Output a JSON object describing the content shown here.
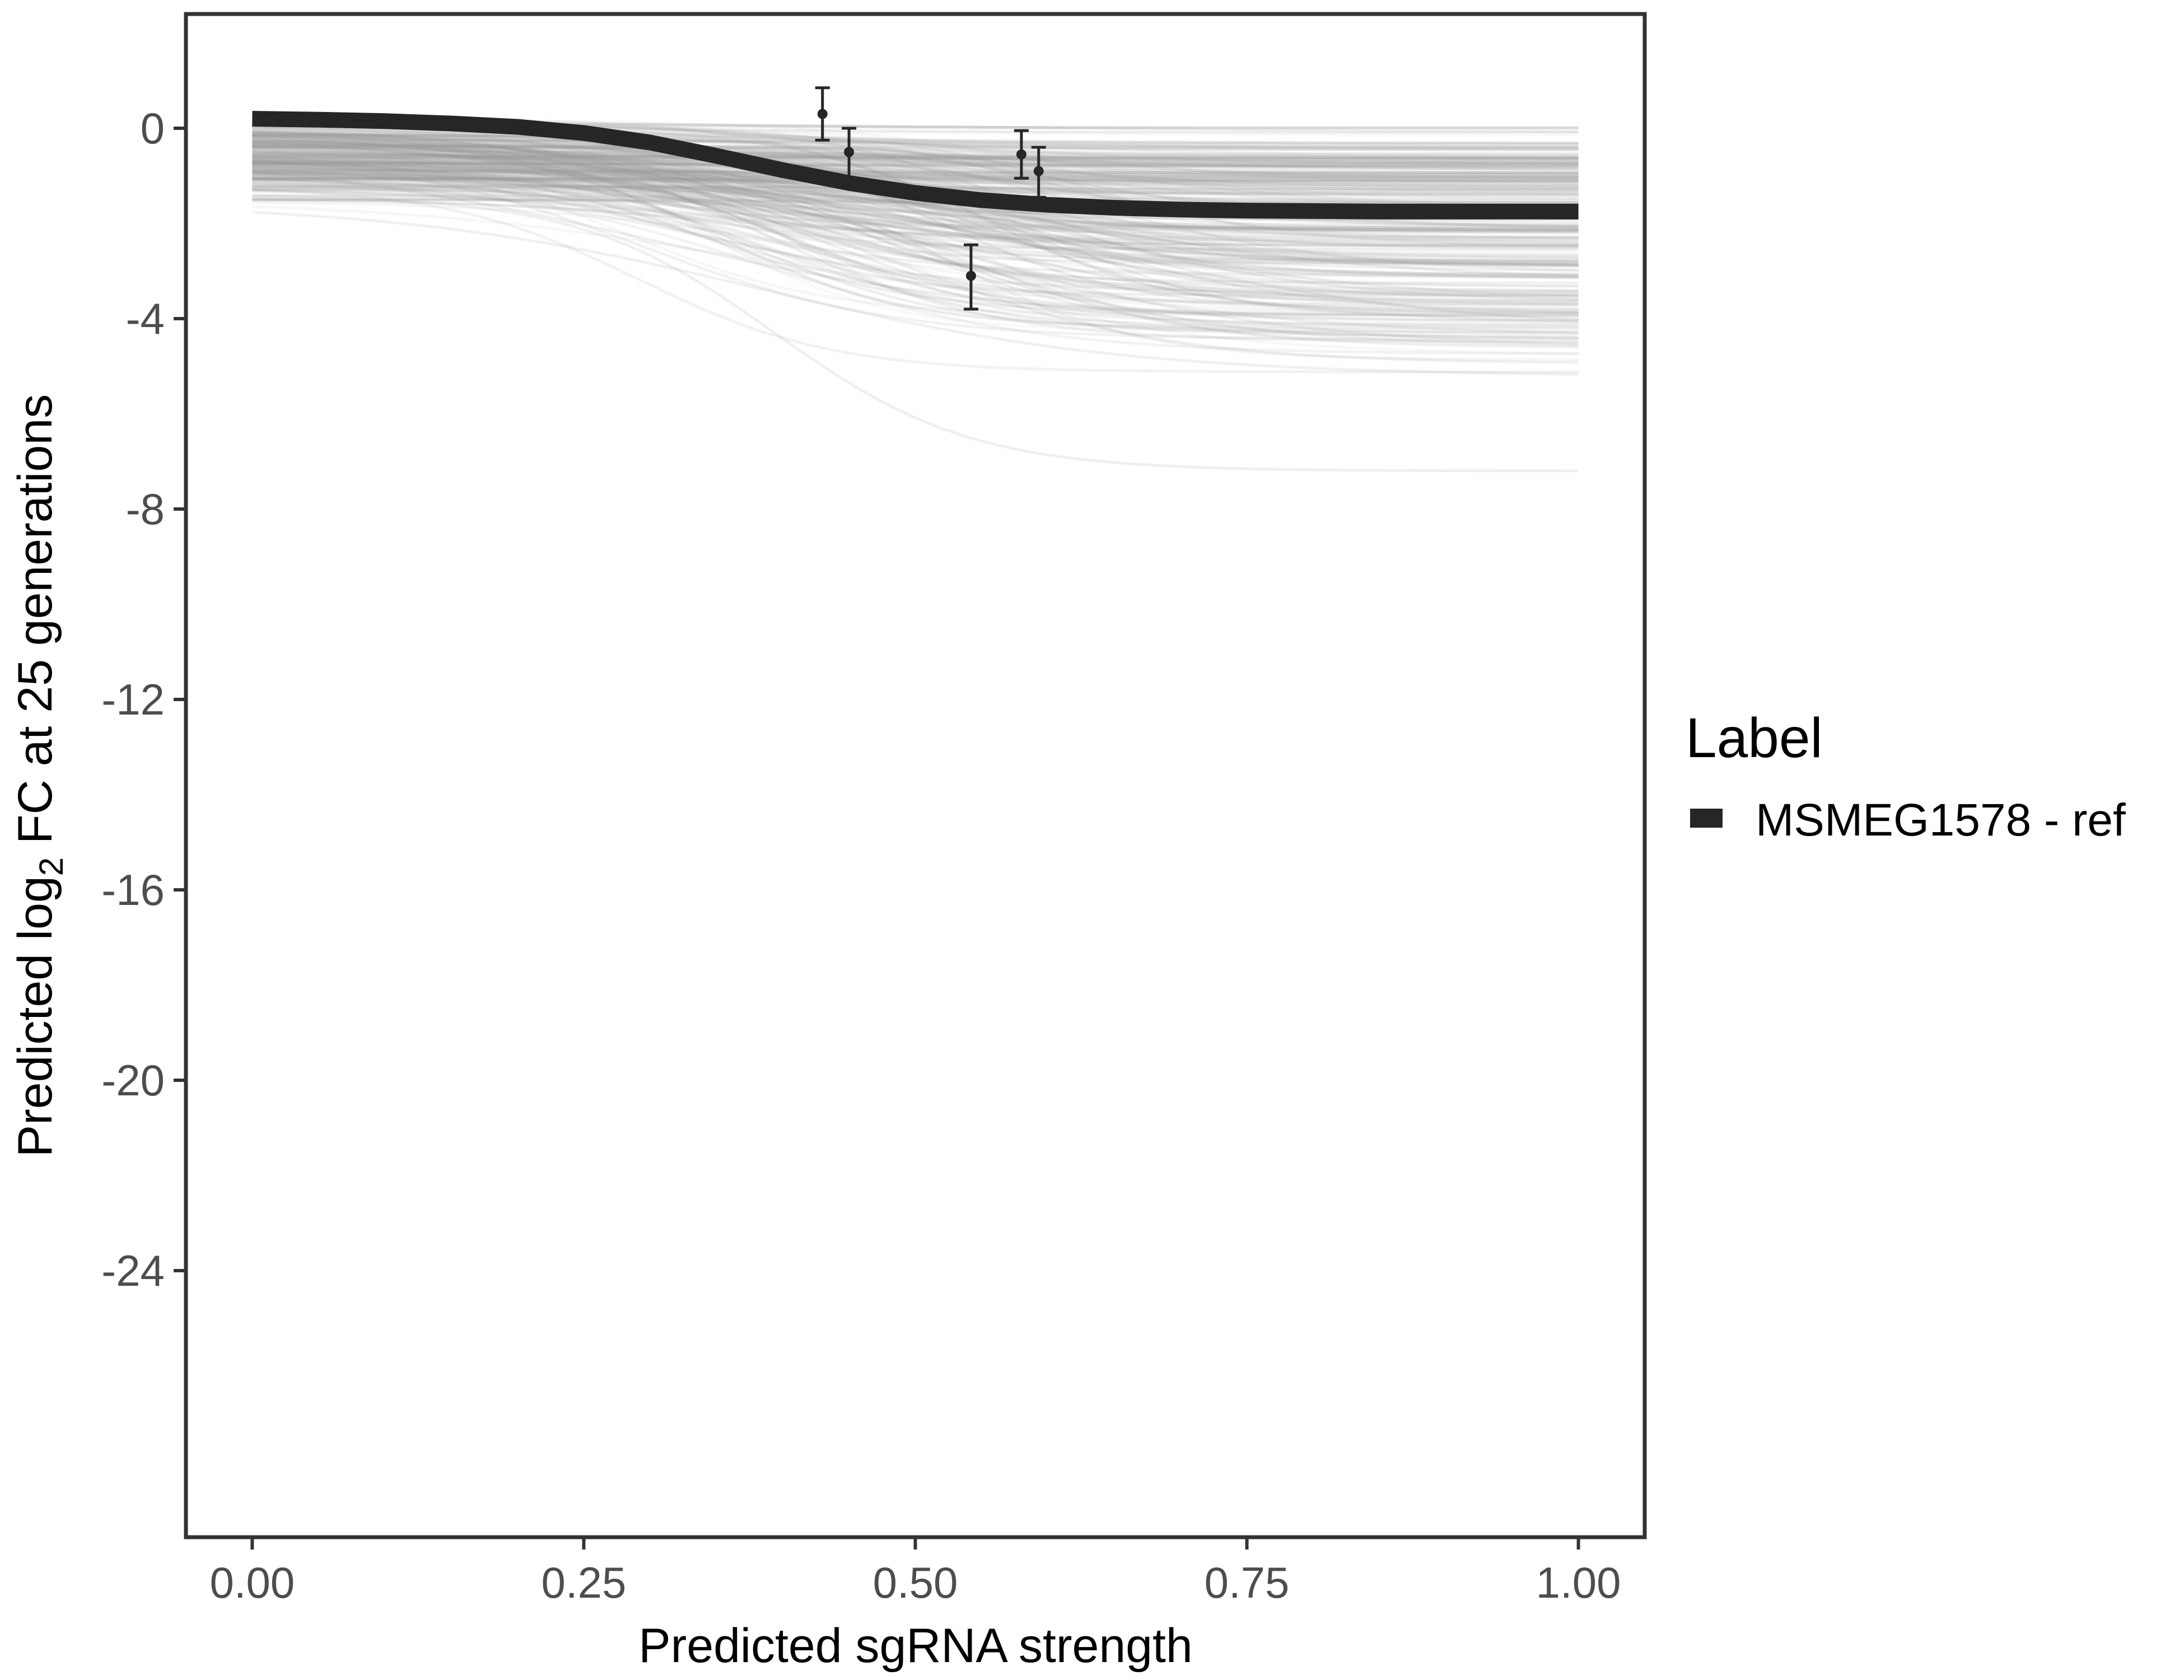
{
  "chart_data": {
    "type": "line",
    "title": "",
    "xlabel": "Predicted sgRNA strength",
    "ylabel": {
      "prefix": "Predicted  log",
      "subscript": "2",
      "suffix": " FC at 25 generations"
    },
    "xlim": [
      -0.05,
      1.05
    ],
    "ylim": [
      -29.6,
      2.4
    ],
    "x_ticks": [
      0,
      0.25,
      0.5,
      0.75,
      1
    ],
    "x_tick_labels": [
      "0.00",
      "0.25",
      "0.50",
      "0.75",
      "1.00"
    ],
    "y_ticks": [
      0,
      -4,
      -8,
      -12,
      -16,
      -20,
      -24
    ],
    "y_tick_labels": [
      "0",
      "-4",
      "-8",
      "-12",
      "-16",
      "-20",
      "-24"
    ],
    "grid": false,
    "legend": {
      "title": "Label",
      "placement": "right",
      "entries": [
        {
          "label": "MSMEG1578 - ref",
          "color": "#262626"
        }
      ]
    },
    "series": [
      {
        "name": "MSMEG1578 - ref",
        "kind": "highlight-curve",
        "color": "#262626",
        "x": [
          0,
          0.05,
          0.1,
          0.15,
          0.2,
          0.25,
          0.3,
          0.35,
          0.4,
          0.45,
          0.5,
          0.55,
          0.6,
          0.65,
          0.7,
          0.75,
          0.8,
          0.85,
          0.9,
          0.95,
          1.0
        ],
        "y": [
          0.2,
          0.18,
          0.15,
          0.1,
          0.03,
          -0.1,
          -0.3,
          -0.58,
          -0.88,
          -1.15,
          -1.36,
          -1.51,
          -1.61,
          -1.67,
          -1.71,
          -1.73,
          -1.74,
          -1.75,
          -1.75,
          -1.75,
          -1.75
        ]
      },
      {
        "kind": "observed-points",
        "color": "#262626",
        "points": [
          {
            "x": 0.43,
            "y": 0.3,
            "ymin": -0.25,
            "ymax": 0.85
          },
          {
            "x": 0.45,
            "y": -0.5,
            "ymin": -1.1,
            "ymax": 0.0
          },
          {
            "x": 0.542,
            "y": -3.1,
            "ymin": -3.8,
            "ymax": -2.45
          },
          {
            "x": 0.58,
            "y": -0.55,
            "ymin": -1.05,
            "ymax": -0.05
          },
          {
            "x": 0.593,
            "y": -0.9,
            "ymin": -1.45,
            "ymax": -0.4
          }
        ]
      }
    ],
    "background_curves": {
      "description_color": "#9a9a9a",
      "count": 260
    }
  }
}
